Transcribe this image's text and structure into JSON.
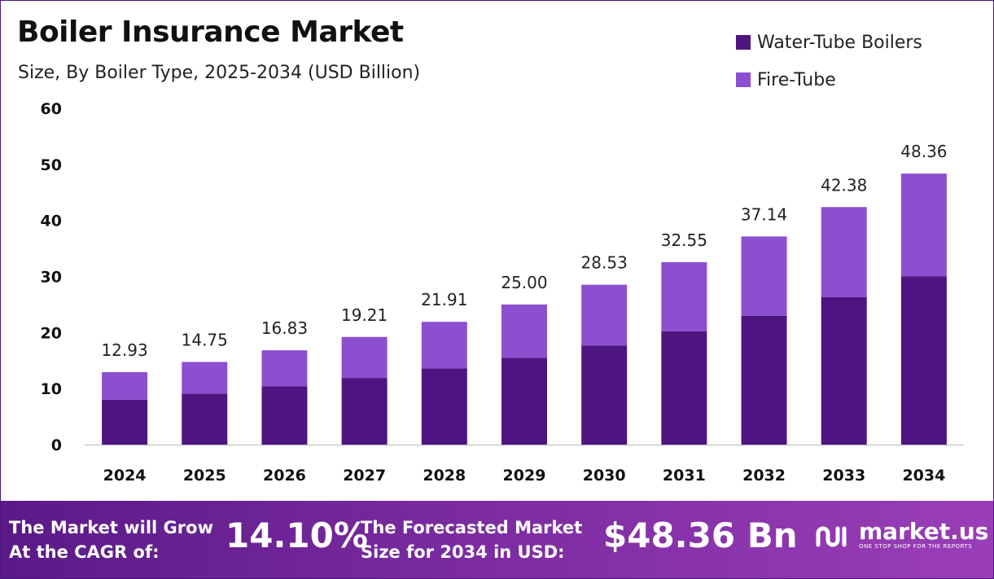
{
  "header": {
    "title": "Boiler Insurance Market",
    "subtitle": "Size, By Boiler Type, 2025-2034 (USD Billion)"
  },
  "colors": {
    "water_tube": "#4e1580",
    "fire_tube": "#8c4fd0",
    "axis": "#c8c8c8",
    "footer_start": "#5a1a86",
    "footer_end": "#9a3eb8"
  },
  "chart_data": {
    "type": "bar",
    "stacked": true,
    "categories": [
      "2024",
      "2025",
      "2026",
      "2027",
      "2028",
      "2029",
      "2030",
      "2031",
      "2032",
      "2033",
      "2034"
    ],
    "series": [
      {
        "name": "Water-Tube Boilers",
        "values": [
          8.0,
          9.1,
          10.4,
          11.9,
          13.6,
          15.5,
          17.7,
          20.2,
          23.0,
          26.3,
          30.0
        ]
      },
      {
        "name": "Fire-Tube",
        "values": [
          4.93,
          5.65,
          6.43,
          7.31,
          8.31,
          9.5,
          10.83,
          12.35,
          14.14,
          16.08,
          18.36
        ]
      }
    ],
    "totals": [
      "12.93",
      "14.75",
      "16.83",
      "19.21",
      "21.91",
      "25.00",
      "28.53",
      "32.55",
      "37.14",
      "42.38",
      "48.36"
    ],
    "yticks": [
      0,
      10,
      20,
      30,
      40,
      50,
      60
    ],
    "ylim": [
      0,
      60
    ],
    "legend_position": "top-right",
    "grid": false
  },
  "footer": {
    "cagr_label_line1": "The Market will Grow",
    "cagr_label_line2": "At the CAGR of:",
    "cagr_value": "14.10%",
    "forecast_label_line1": "The Forecasted Market",
    "forecast_label_line2": "Size for 2034 in USD:",
    "forecast_value": "$48.36 Bn",
    "brand_name": "market.us",
    "brand_tagline": "ONE STOP SHOP FOR THE REPORTS",
    "brand_icon": "market-us-logo-icon"
  }
}
